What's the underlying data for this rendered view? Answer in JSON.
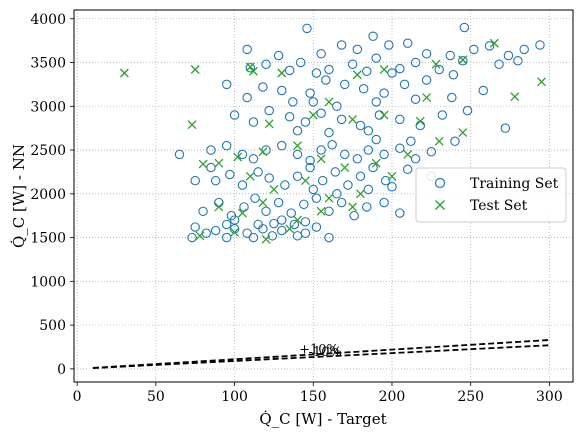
{
  "chart_data": {
    "type": "scatter",
    "xlabel": "Q̇_C [W] - Target",
    "ylabel": "Q̇_C [W] - NN",
    "xlim": [
      -2,
      315
    ],
    "ylim": [
      -150,
      4100
    ],
    "xticks": [
      0,
      50,
      100,
      150,
      200,
      250,
      300
    ],
    "yticks": [
      0,
      500,
      1000,
      1500,
      2000,
      2500,
      3000,
      3500,
      4000
    ],
    "grid": true,
    "legend": {
      "placement": "center-right",
      "entries": [
        "Training Set",
        "Test Set"
      ]
    },
    "colors": {
      "training": "#1f77b4",
      "test": "#2ca02c",
      "bounds": "#000000"
    },
    "annotations": [
      {
        "text": "+10%",
        "x": 141,
        "y": 175
      },
      {
        "text": "-10%",
        "x": 147,
        "y": 145
      }
    ],
    "bounds": [
      {
        "name": "+10%",
        "x": [
          10,
          300
        ],
        "y": [
          11,
          330
        ]
      },
      {
        "name": "-10%",
        "x": [
          10,
          300
        ],
        "y": [
          9,
          270
        ]
      }
    ],
    "series": [
      {
        "name": "Training Set",
        "marker": "circle-open",
        "points": [
          [
            108,
            3650
          ],
          [
            128,
            3580
          ],
          [
            146,
            3890
          ],
          [
            155,
            3600
          ],
          [
            168,
            3700
          ],
          [
            178,
            3650
          ],
          [
            188,
            3800
          ],
          [
            198,
            3700
          ],
          [
            210,
            3720
          ],
          [
            222,
            3600
          ],
          [
            246,
            3900
          ],
          [
            252,
            3650
          ],
          [
            262,
            3690
          ],
          [
            274,
            3580
          ],
          [
            284,
            3650
          ],
          [
            294,
            3700
          ],
          [
            237,
            3580
          ],
          [
            120,
            3480
          ],
          [
            142,
            3500
          ],
          [
            160,
            3420
          ],
          [
            175,
            3480
          ],
          [
            190,
            3550
          ],
          [
            205,
            3430
          ],
          [
            215,
            3500
          ],
          [
            230,
            3420
          ],
          [
            245,
            3520
          ],
          [
            268,
            3480
          ],
          [
            280,
            3520
          ],
          [
            110,
            3440
          ],
          [
            135,
            3410
          ],
          [
            152,
            3380
          ],
          [
            184,
            3400
          ],
          [
            200,
            3380
          ],
          [
            239,
            3360
          ],
          [
            95,
            3250
          ],
          [
            108,
            3100
          ],
          [
            118,
            3220
          ],
          [
            130,
            3180
          ],
          [
            148,
            3150
          ],
          [
            158,
            3300
          ],
          [
            170,
            3250
          ],
          [
            182,
            3200
          ],
          [
            195,
            3150
          ],
          [
            208,
            3250
          ],
          [
            222,
            3300
          ],
          [
            238,
            3100
          ],
          [
            258,
            3180
          ],
          [
            150,
            3050
          ],
          [
            165,
            3000
          ],
          [
            190,
            3050
          ],
          [
            215,
            3080
          ],
          [
            137,
            3050
          ],
          [
            100,
            2900
          ],
          [
            112,
            2820
          ],
          [
            122,
            2950
          ],
          [
            135,
            2880
          ],
          [
            145,
            2820
          ],
          [
            155,
            2920
          ],
          [
            168,
            2850
          ],
          [
            180,
            2780
          ],
          [
            192,
            2900
          ],
          [
            205,
            2850
          ],
          [
            218,
            2780
          ],
          [
            232,
            2900
          ],
          [
            248,
            2950
          ],
          [
            272,
            2750
          ],
          [
            160,
            2700
          ],
          [
            185,
            2720
          ],
          [
            140,
            2720
          ],
          [
            65,
            2450
          ],
          [
            85,
            2500
          ],
          [
            95,
            2550
          ],
          [
            105,
            2450
          ],
          [
            112,
            2400
          ],
          [
            120,
            2500
          ],
          [
            130,
            2550
          ],
          [
            140,
            2450
          ],
          [
            148,
            2380
          ],
          [
            155,
            2500
          ],
          [
            162,
            2560
          ],
          [
            170,
            2450
          ],
          [
            178,
            2400
          ],
          [
            185,
            2500
          ],
          [
            195,
            2450
          ],
          [
            205,
            2520
          ],
          [
            215,
            2400
          ],
          [
            225,
            2480
          ],
          [
            240,
            2600
          ],
          [
            212,
            2600
          ],
          [
            190,
            2620
          ],
          [
            88,
            2150
          ],
          [
            97,
            2220
          ],
          [
            105,
            2100
          ],
          [
            115,
            2250
          ],
          [
            122,
            2180
          ],
          [
            132,
            2100
          ],
          [
            140,
            2200
          ],
          [
            148,
            2300
          ],
          [
            156,
            2150
          ],
          [
            164,
            2250
          ],
          [
            172,
            2100
          ],
          [
            180,
            2200
          ],
          [
            188,
            2300
          ],
          [
            196,
            2150
          ],
          [
            210,
            2280
          ],
          [
            225,
            2200
          ],
          [
            150,
            2050
          ],
          [
            165,
            2000
          ],
          [
            185,
            2050
          ],
          [
            200,
            2080
          ],
          [
            75,
            2150
          ],
          [
            85,
            2300
          ],
          [
            80,
            1800
          ],
          [
            90,
            1900
          ],
          [
            98,
            1750
          ],
          [
            106,
            1850
          ],
          [
            113,
            1950
          ],
          [
            120,
            1800
          ],
          [
            128,
            1900
          ],
          [
            136,
            1780
          ],
          [
            144,
            1880
          ],
          [
            152,
            1950
          ],
          [
            160,
            1800
          ],
          [
            168,
            1900
          ],
          [
            176,
            1750
          ],
          [
            184,
            1850
          ],
          [
            195,
            1900
          ],
          [
            205,
            1780
          ],
          [
            100,
            1700
          ],
          [
            115,
            1650
          ],
          [
            130,
            1700
          ],
          [
            145,
            1680
          ],
          [
            75,
            1620
          ],
          [
            82,
            1550
          ],
          [
            88,
            1580
          ],
          [
            95,
            1500
          ],
          [
            100,
            1600
          ],
          [
            108,
            1550
          ],
          [
            112,
            1500
          ],
          [
            118,
            1600
          ],
          [
            124,
            1520
          ],
          [
            130,
            1580
          ],
          [
            138,
            1650
          ],
          [
            145,
            1550
          ],
          [
            152,
            1620
          ],
          [
            160,
            1500
          ],
          [
            95,
            1650
          ],
          [
            125,
            1660
          ],
          [
            73,
            1500
          ],
          [
            140,
            1520
          ]
        ]
      },
      {
        "name": "Test Set",
        "marker": "x",
        "points": [
          [
            30,
            3380
          ],
          [
            75,
            3420
          ],
          [
            110,
            3450
          ],
          [
            112,
            3400
          ],
          [
            130,
            3380
          ],
          [
            178,
            3360
          ],
          [
            195,
            3420
          ],
          [
            228,
            3480
          ],
          [
            265,
            3720
          ],
          [
            295,
            3280
          ],
          [
            245,
            3530
          ],
          [
            73,
            2790
          ],
          [
            122,
            2800
          ],
          [
            150,
            2900
          ],
          [
            175,
            2850
          ],
          [
            195,
            2900
          ],
          [
            218,
            2830
          ],
          [
            245,
            2700
          ],
          [
            278,
            3110
          ],
          [
            222,
            3100
          ],
          [
            160,
            3050
          ],
          [
            90,
            2350
          ],
          [
            102,
            2420
          ],
          [
            118,
            2480
          ],
          [
            140,
            2550
          ],
          [
            155,
            2400
          ],
          [
            170,
            2300
          ],
          [
            190,
            2350
          ],
          [
            210,
            2450
          ],
          [
            230,
            2600
          ],
          [
            80,
            2340
          ],
          [
            110,
            2200
          ],
          [
            125,
            2050
          ],
          [
            145,
            2150
          ],
          [
            160,
            1950
          ],
          [
            180,
            2000
          ],
          [
            200,
            2200
          ],
          [
            90,
            1850
          ],
          [
            105,
            1780
          ],
          [
            118,
            1900
          ],
          [
            140,
            1700
          ],
          [
            155,
            1800
          ],
          [
            175,
            1850
          ],
          [
            78,
            1520
          ],
          [
            100,
            1560
          ],
          [
            120,
            1480
          ],
          [
            135,
            1600
          ]
        ]
      }
    ]
  }
}
